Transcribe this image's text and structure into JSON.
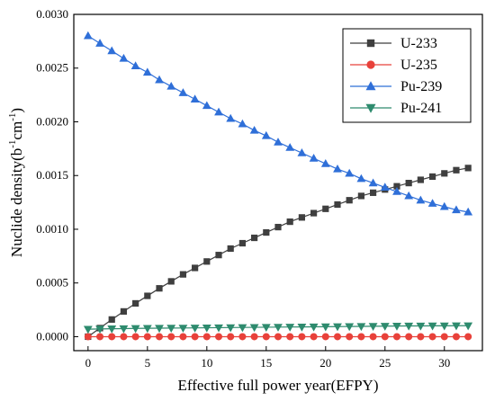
{
  "chart_data": {
    "type": "line",
    "xlabel": "Effective full power year(EFPY)",
    "ylabel_parts": [
      "Nuclide density(b",
      "-1",
      "cm",
      "-1",
      ")"
    ],
    "xlim": [
      -1.2,
      33.2
    ],
    "ylim": [
      -0.00013,
      0.003
    ],
    "xticks": [
      0,
      5,
      10,
      15,
      20,
      25,
      30
    ],
    "yticks": [
      0.0,
      0.0005,
      0.001,
      0.0015,
      0.002,
      0.0025,
      0.003
    ],
    "ytick_labels": [
      "0.0000",
      "0.0005",
      "0.0010",
      "0.0015",
      "0.0020",
      "0.0025",
      "0.0030"
    ],
    "legend_position": "top-right",
    "x": [
      0,
      1,
      2,
      3,
      4,
      5,
      6,
      7,
      8,
      9,
      10,
      11,
      12,
      13,
      14,
      15,
      16,
      17,
      18,
      19,
      20,
      21,
      22,
      23,
      24,
      25,
      26,
      27,
      28,
      29,
      30,
      31,
      32
    ],
    "series": [
      {
        "name": "U-233",
        "color": "#3f3f3f",
        "marker": "square",
        "values": [
          0.0,
          8e-05,
          0.00016,
          0.000235,
          0.00031,
          0.00038,
          0.00045,
          0.000515,
          0.00058,
          0.00064,
          0.0007,
          0.00076,
          0.00082,
          0.00087,
          0.00092,
          0.00097,
          0.00102,
          0.00107,
          0.00111,
          0.00115,
          0.00119,
          0.00123,
          0.00127,
          0.00131,
          0.00134,
          0.00137,
          0.0014,
          0.00143,
          0.00146,
          0.00149,
          0.00152,
          0.00155,
          0.00157
        ]
      },
      {
        "name": "U-235",
        "color": "#e8413a",
        "marker": "circle",
        "values": [
          0.0,
          0.0,
          0.0,
          0.0,
          0.0,
          0.0,
          0.0,
          0.0,
          0.0,
          0.0,
          0.0,
          0.0,
          0.0,
          0.0,
          0.0,
          0.0,
          0.0,
          0.0,
          0.0,
          0.0,
          0.0,
          0.0,
          0.0,
          0.0,
          0.0,
          0.0,
          0.0,
          0.0,
          0.0,
          0.0,
          0.0,
          0.0,
          0.0
        ]
      },
      {
        "name": "Pu-239",
        "color": "#2f6fd8",
        "marker": "triangle-up",
        "values": [
          0.0028,
          0.00273,
          0.00266,
          0.00259,
          0.00252,
          0.00246,
          0.00239,
          0.00233,
          0.00227,
          0.00221,
          0.00215,
          0.00209,
          0.00203,
          0.00198,
          0.00192,
          0.00187,
          0.00181,
          0.00176,
          0.00171,
          0.00166,
          0.00161,
          0.00156,
          0.00152,
          0.00147,
          0.00143,
          0.00139,
          0.00135,
          0.00131,
          0.00127,
          0.00124,
          0.00121,
          0.00118,
          0.00116
        ]
      },
      {
        "name": "Pu-241",
        "color": "#2e8b6e",
        "marker": "triangle-down",
        "values": [
          7e-05,
          7.2e-05,
          7.4e-05,
          7.5e-05,
          7.7e-05,
          7.8e-05,
          7.9e-05,
          8e-05,
          8.1e-05,
          8.2e-05,
          8.3e-05,
          8.4e-05,
          8.5e-05,
          8.6e-05,
          8.7e-05,
          8.8e-05,
          8.9e-05,
          9e-05,
          9.1e-05,
          9.2e-05,
          9.3e-05,
          9.4e-05,
          9.5e-05,
          9.6e-05,
          9.7e-05,
          9.8e-05,
          9.9e-05,
          0.0001,
          0.0001,
          0.000101,
          0.000101,
          0.000102,
          0.000102
        ]
      }
    ]
  }
}
